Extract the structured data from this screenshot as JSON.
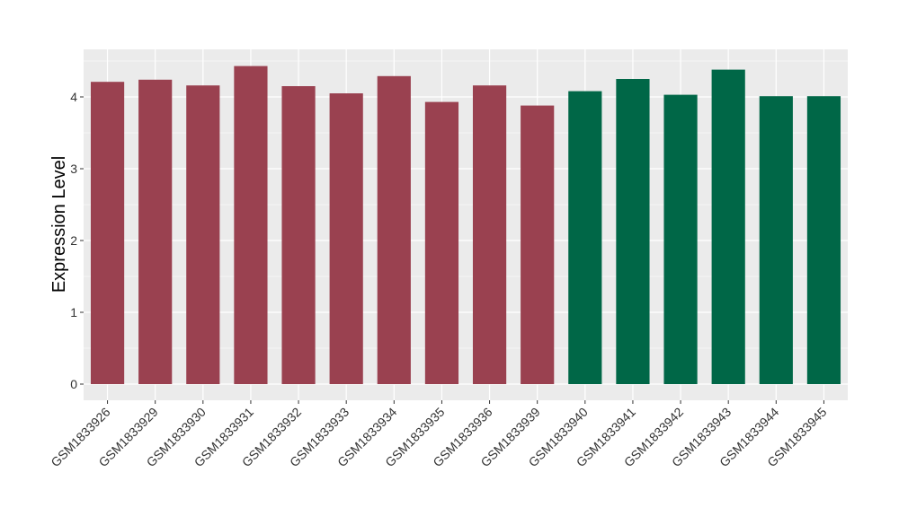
{
  "chart_data": {
    "type": "bar",
    "title": "",
    "xlabel": "",
    "ylabel": "Expression Level",
    "ylim": [
      0,
      4.66
    ],
    "yticks": [
      0,
      1,
      2,
      3,
      4
    ],
    "grid": true,
    "categories": [
      "GSM1833926",
      "GSM1833929",
      "GSM1833930",
      "GSM1833931",
      "GSM1833932",
      "GSM1833933",
      "GSM1833934",
      "GSM1833935",
      "GSM1833936",
      "GSM1833939",
      "GSM1833940",
      "GSM1833941",
      "GSM1833942",
      "GSM1833943",
      "GSM1833944",
      "GSM1833945"
    ],
    "values": [
      4.21,
      4.24,
      4.16,
      4.43,
      4.15,
      4.05,
      4.29,
      3.93,
      4.16,
      3.88,
      4.08,
      4.25,
      4.03,
      4.38,
      4.01,
      4.01
    ],
    "groups": [
      0,
      0,
      0,
      0,
      0,
      0,
      0,
      0,
      0,
      0,
      1,
      1,
      1,
      1,
      1,
      1
    ],
    "group_colors": [
      "#9A4150",
      "#006747"
    ],
    "panel_background": "#EBEBEB"
  }
}
